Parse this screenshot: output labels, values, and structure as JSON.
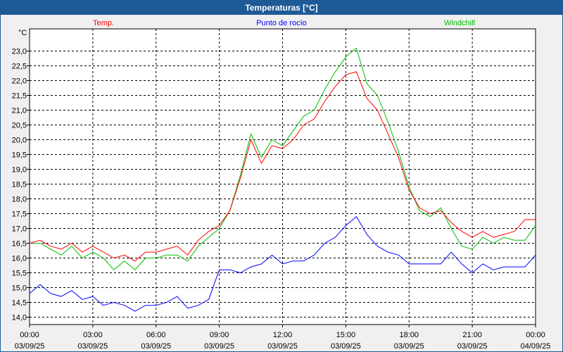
{
  "window": {
    "title": "Temperaturas [°C]"
  },
  "chart_data": {
    "type": "line",
    "title": "Temperaturas [°C]",
    "ylabel": "°C",
    "ylim": [
      13.75,
      23.75
    ],
    "yticks": [
      "14,0",
      "14,5",
      "15,0",
      "15,5",
      "16,0",
      "16,5",
      "17,0",
      "17,5",
      "18,0",
      "18,5",
      "19,0",
      "19,5",
      "20,0",
      "20,5",
      "21,0",
      "21,5",
      "22,0",
      "22,5",
      "23,0"
    ],
    "x_range_hours": [
      0,
      24
    ],
    "x_ticks": [
      {
        "time": "00:00",
        "date": "03/09/25"
      },
      {
        "time": "03:00",
        "date": "03/09/25"
      },
      {
        "time": "06:00",
        "date": "03/09/25"
      },
      {
        "time": "09:00",
        "date": "03/09/25"
      },
      {
        "time": "12:00",
        "date": "03/09/25"
      },
      {
        "time": "15:00",
        "date": "03/09/25"
      },
      {
        "time": "18:00",
        "date": "03/09/25"
      },
      {
        "time": "21:00",
        "date": "03/09/25"
      },
      {
        "time": "00:00",
        "date": "04/09/25"
      }
    ],
    "grid": true,
    "x": [
      0,
      0.5,
      1,
      1.5,
      2,
      2.5,
      3,
      3.5,
      4,
      4.5,
      5,
      5.5,
      6,
      6.5,
      7,
      7.5,
      8,
      8.5,
      9,
      9.5,
      10,
      10.5,
      11,
      11.5,
      12,
      12.5,
      13,
      13.5,
      14,
      14.5,
      15,
      15.5,
      16,
      16.5,
      17,
      17.5,
      18,
      18.5,
      19,
      19.5,
      20,
      20.5,
      21,
      21.5,
      22,
      22.5,
      23,
      23.5,
      24
    ],
    "series": [
      {
        "name": "Temp.",
        "color": "#ff0000",
        "values": [
          16.5,
          16.6,
          16.4,
          16.3,
          16.5,
          16.2,
          16.4,
          16.2,
          16.0,
          16.1,
          15.9,
          16.2,
          16.2,
          16.3,
          16.4,
          16.1,
          16.6,
          16.9,
          17.1,
          17.6,
          18.7,
          20.0,
          19.2,
          19.8,
          19.7,
          20.0,
          20.5,
          20.7,
          21.3,
          21.8,
          22.2,
          22.3,
          21.4,
          21.0,
          20.2,
          19.4,
          18.3,
          17.7,
          17.5,
          17.6,
          17.2,
          16.9,
          16.7,
          16.9,
          16.7,
          16.8,
          16.9,
          17.3,
          17.3
        ]
      },
      {
        "name": "Punto de rocío",
        "color": "#0000ff",
        "values": [
          14.8,
          15.1,
          14.8,
          14.7,
          14.9,
          14.6,
          14.7,
          14.4,
          14.5,
          14.4,
          14.2,
          14.4,
          14.4,
          14.5,
          14.7,
          14.3,
          14.4,
          14.6,
          15.6,
          15.6,
          15.5,
          15.7,
          15.8,
          16.1,
          15.8,
          15.9,
          15.9,
          16.1,
          16.5,
          16.7,
          17.1,
          17.4,
          16.8,
          16.4,
          16.2,
          16.1,
          15.8,
          15.8,
          15.8,
          15.8,
          16.2,
          15.8,
          15.5,
          15.8,
          15.6,
          15.7,
          15.7,
          15.7,
          16.1
        ]
      },
      {
        "name": "Windchill",
        "color": "#00bb00",
        "values": [
          16.5,
          16.5,
          16.3,
          16.1,
          16.4,
          16.0,
          16.2,
          16.0,
          15.6,
          15.9,
          15.6,
          16.0,
          16.0,
          16.1,
          16.1,
          15.9,
          16.4,
          16.7,
          17.0,
          17.6,
          18.8,
          20.2,
          19.4,
          20.0,
          19.8,
          20.3,
          20.8,
          21.0,
          21.7,
          22.3,
          22.8,
          23.1,
          21.9,
          21.5,
          20.6,
          19.6,
          18.4,
          17.6,
          17.4,
          17.7,
          17.0,
          16.4,
          16.3,
          16.7,
          16.5,
          16.7,
          16.6,
          16.6,
          17.1
        ]
      }
    ]
  }
}
